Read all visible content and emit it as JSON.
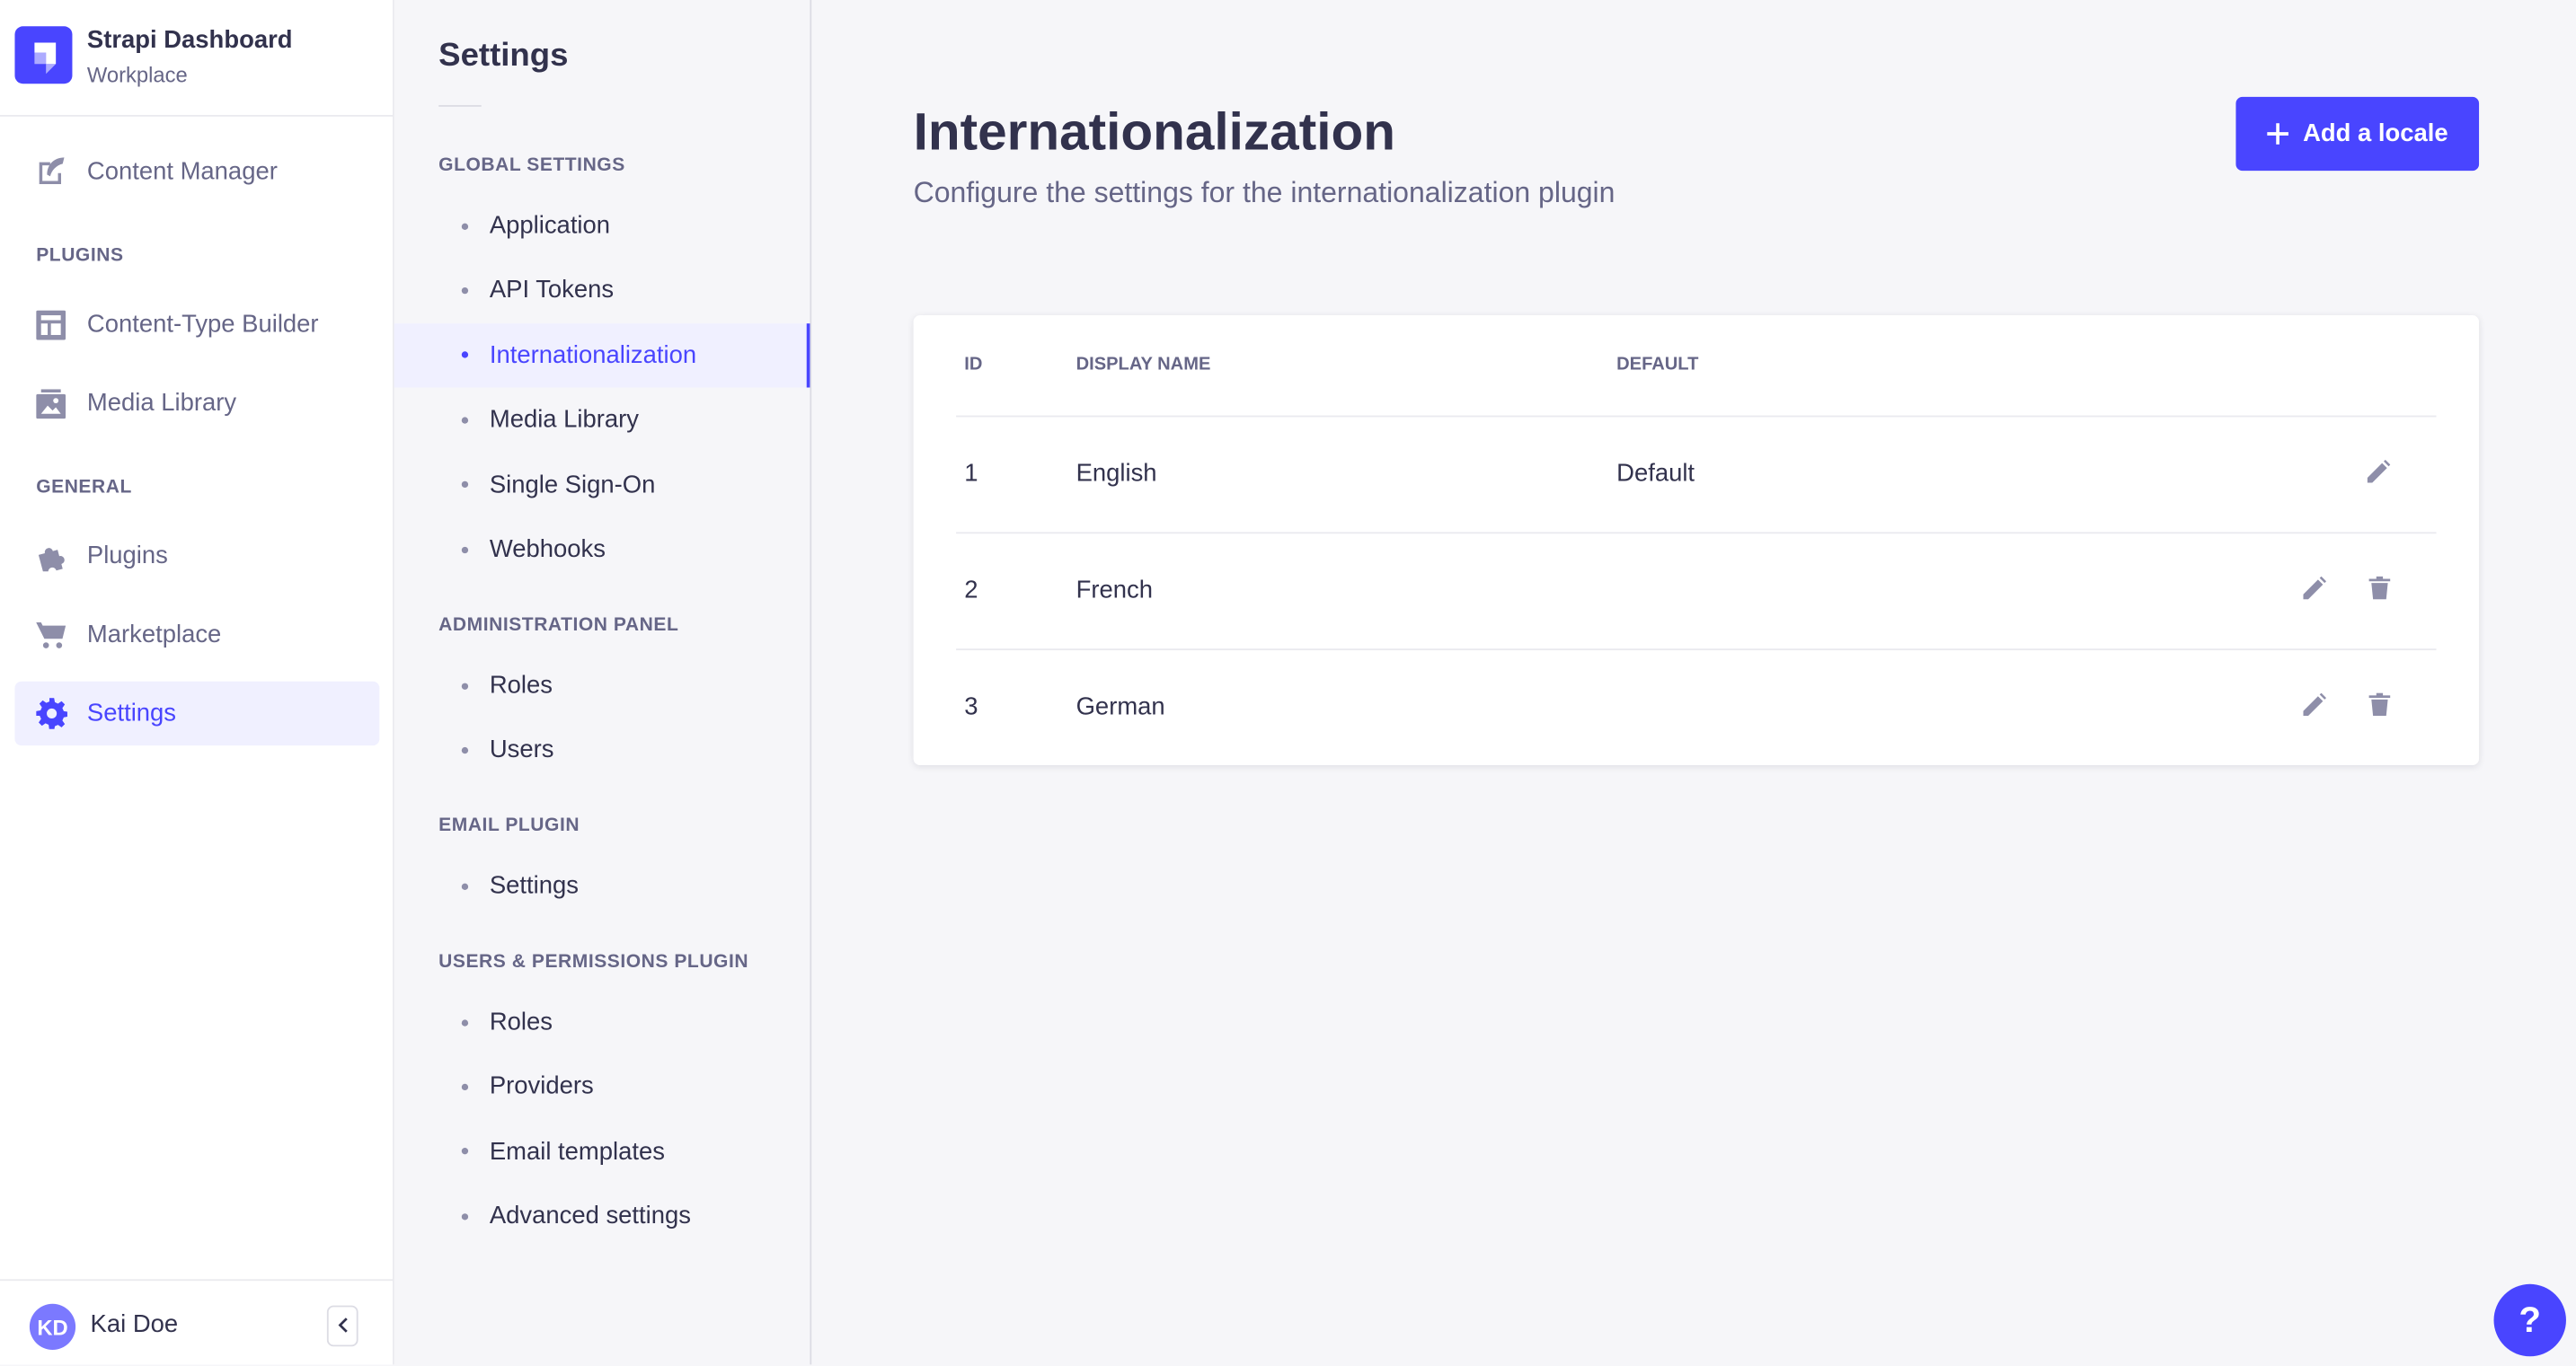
{
  "brand": {
    "title": "Strapi Dashboard",
    "subtitle": "Workplace",
    "color": "#4945ff"
  },
  "nav": {
    "content_manager": "Content Manager",
    "plugins_label": "PLUGINS",
    "content_type_builder": "Content-Type Builder",
    "media_library": "Media Library",
    "general_label": "GENERAL",
    "plugins": "Plugins",
    "marketplace": "Marketplace",
    "settings": "Settings"
  },
  "user": {
    "initials": "KD",
    "name": "Kai Doe"
  },
  "settings_nav": {
    "title": "Settings",
    "sections": [
      {
        "label": "GLOBAL SETTINGS",
        "items": [
          "Application",
          "API Tokens",
          "Internationalization",
          "Media Library",
          "Single Sign-On",
          "Webhooks"
        ]
      },
      {
        "label": "ADMINISTRATION PANEL",
        "items": [
          "Roles",
          "Users"
        ]
      },
      {
        "label": "EMAIL PLUGIN",
        "items": [
          "Settings"
        ]
      },
      {
        "label": "USERS & PERMISSIONS PLUGIN",
        "items": [
          "Roles",
          "Providers",
          "Email templates",
          "Advanced settings"
        ]
      }
    ],
    "active": "Internationalization"
  },
  "main": {
    "title": "Internationalization",
    "subtitle": "Configure the settings for the internationalization plugin",
    "add_button": "Add a locale",
    "table": {
      "headers": [
        "ID",
        "DISPLAY NAME",
        "DEFAULT"
      ],
      "rows": [
        {
          "id": "1",
          "name": "English",
          "default": "Default"
        },
        {
          "id": "2",
          "name": "French",
          "default": ""
        },
        {
          "id": "3",
          "name": "German",
          "default": ""
        }
      ]
    }
  },
  "help": "?"
}
